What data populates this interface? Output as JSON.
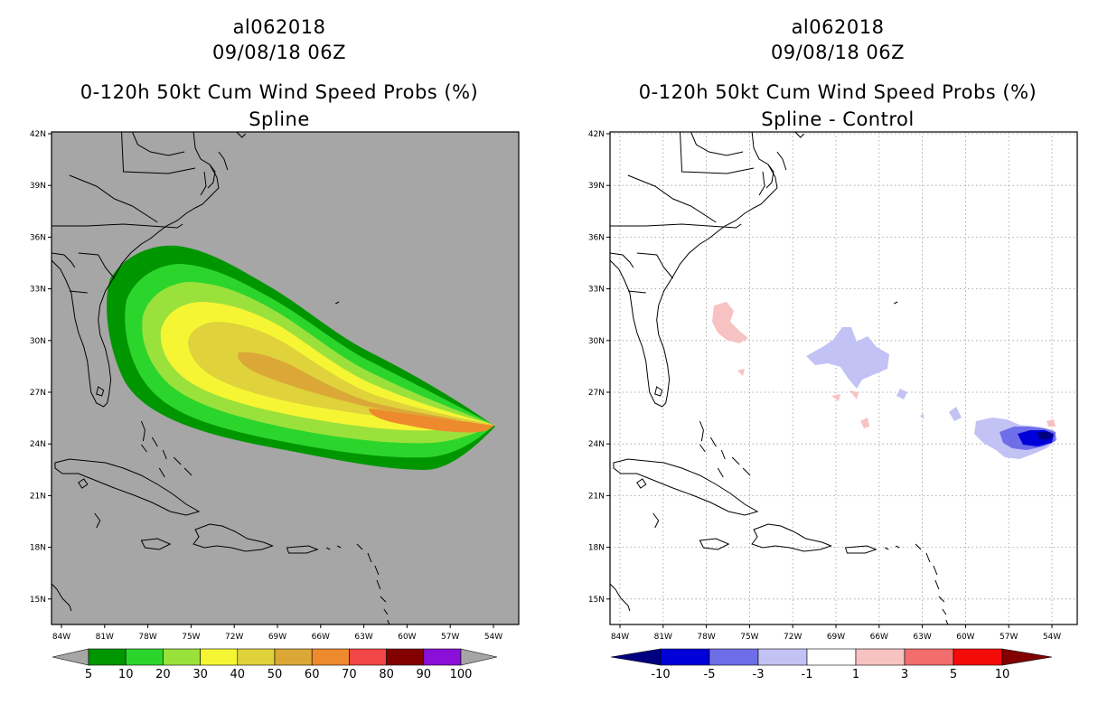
{
  "left": {
    "storm_id": "al062018",
    "datetime": "09/08/18 06Z",
    "product": "0-120h 50kt Cum Wind Speed Probs (%)",
    "subtitle": "Spline",
    "colorbar": {
      "labels": [
        "5",
        "10",
        "20",
        "30",
        "40",
        "50",
        "60",
        "70",
        "80",
        "90",
        "100"
      ],
      "colors": [
        "#009600",
        "#2cd52c",
        "#9be13c",
        "#f5f534",
        "#e0d23a",
        "#dba837",
        "#ed8a2d",
        "#f24545",
        "#820000",
        "#8a0fd8"
      ]
    }
  },
  "right": {
    "storm_id": "al062018",
    "datetime": "09/08/18 06Z",
    "product": "0-120h 50kt Cum Wind Speed Probs (%)",
    "subtitle": "Spline - Control",
    "colorbar": {
      "labels": [
        "-10",
        "-5",
        "-3",
        "-1",
        "1",
        "3",
        "5",
        "10"
      ],
      "colors": [
        "#0000d8",
        "#6e6ee8",
        "#c2c2f5",
        "#ffffff",
        "#f7c2c2",
        "#f26e6e",
        "#f50a0a"
      ]
    }
  },
  "map": {
    "lat_labels": [
      "42N",
      "39N",
      "36N",
      "33N",
      "30N",
      "27N",
      "24N",
      "21N",
      "18N",
      "15N"
    ],
    "lon_labels": [
      "84W",
      "81W",
      "78W",
      "75W",
      "72W",
      "69W",
      "66W",
      "63W",
      "60W",
      "57W",
      "54W"
    ]
  }
}
